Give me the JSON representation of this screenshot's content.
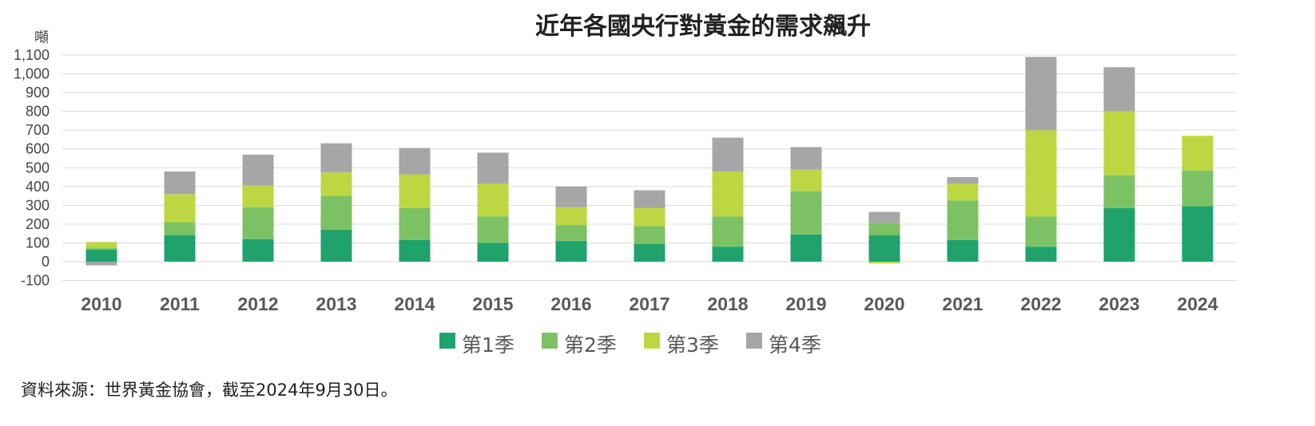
{
  "chart_data": {
    "type": "bar",
    "stacked": true,
    "title": "近年各國央行對黃金的需求飆升",
    "ylabel": "噸",
    "xlabel": "",
    "ylim": [
      -100,
      1100
    ],
    "yticks": [
      -100,
      0,
      100,
      200,
      300,
      400,
      500,
      600,
      700,
      800,
      900,
      1000,
      1100
    ],
    "ytick_labels": [
      "-100",
      "0",
      "100",
      "200",
      "300",
      "400",
      "500",
      "600",
      "700",
      "800",
      "900",
      "1,000",
      "1,100"
    ],
    "grid": true,
    "legend_position": "bottom",
    "categories": [
      "2010",
      "2011",
      "2012",
      "2013",
      "2014",
      "2015",
      "2016",
      "2017",
      "2018",
      "2019",
      "2020",
      "2021",
      "2022",
      "2023",
      "2024"
    ],
    "series": [
      {
        "name": "第1季",
        "color": "#20a26d",
        "values": [
          65,
          140,
          120,
          170,
          115,
          100,
          110,
          95,
          80,
          145,
          140,
          115,
          80,
          285,
          295
        ]
      },
      {
        "name": "第2季",
        "color": "#7cc264",
        "values": [
          10,
          70,
          170,
          180,
          170,
          140,
          85,
          95,
          160,
          230,
          65,
          210,
          160,
          175,
          190
        ]
      },
      {
        "name": "第3季",
        "color": "#bdd743",
        "values": [
          30,
          150,
          115,
          125,
          180,
          175,
          95,
          95,
          240,
          115,
          -10,
          90,
          460,
          340,
          185
        ]
      },
      {
        "name": "第4季",
        "color": "#a6a6a6",
        "values": [
          -20,
          120,
          165,
          155,
          140,
          165,
          110,
          95,
          180,
          120,
          60,
          35,
          390,
          235,
          0
        ]
      }
    ],
    "source_note": "資料來源：世界黃金協會，截至2024年9月30日。"
  }
}
